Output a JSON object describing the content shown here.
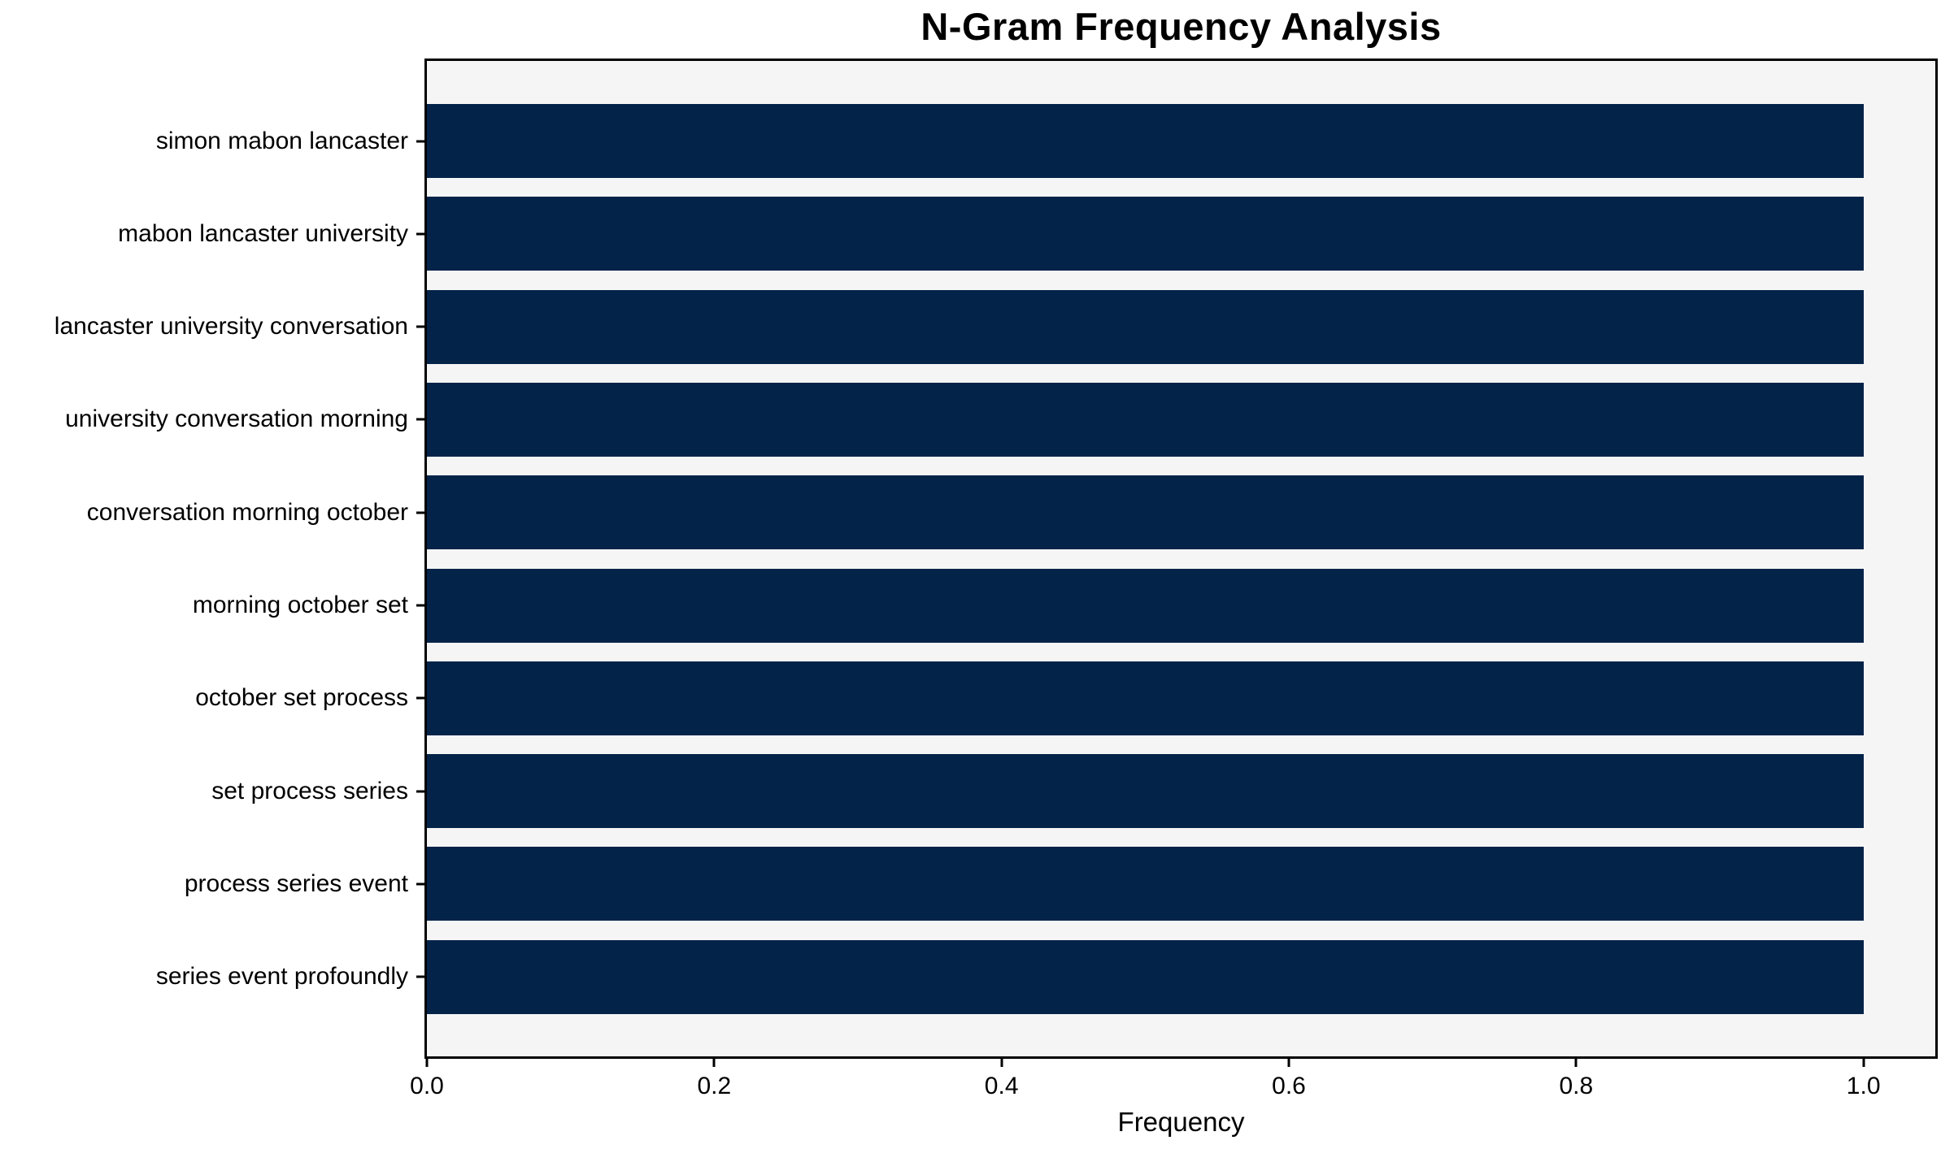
{
  "chart_data": {
    "type": "bar",
    "orientation": "horizontal",
    "title": "N-Gram Frequency Analysis",
    "xlabel": "Frequency",
    "ylabel": "",
    "categories": [
      "simon mabon lancaster",
      "mabon lancaster university",
      "lancaster university conversation",
      "university conversation morning",
      "conversation morning october",
      "morning october set",
      "october set process",
      "set process series",
      "process series event",
      "series event profoundly"
    ],
    "values": [
      1.0,
      1.0,
      1.0,
      1.0,
      1.0,
      1.0,
      1.0,
      1.0,
      1.0,
      1.0
    ],
    "x_ticks": [
      0.0,
      0.2,
      0.4,
      0.6,
      0.8,
      1.0
    ],
    "x_tick_labels": [
      "0.0",
      "0.2",
      "0.4",
      "0.6",
      "0.8",
      "1.0"
    ],
    "xlim": [
      0,
      1.05
    ],
    "grid": false,
    "legend": "none",
    "colors": {
      "bar": "#032349",
      "plot_background": "#f5f5f5",
      "figure_background": "#ffffff",
      "spine": "#000000",
      "text": "#000000"
    }
  }
}
